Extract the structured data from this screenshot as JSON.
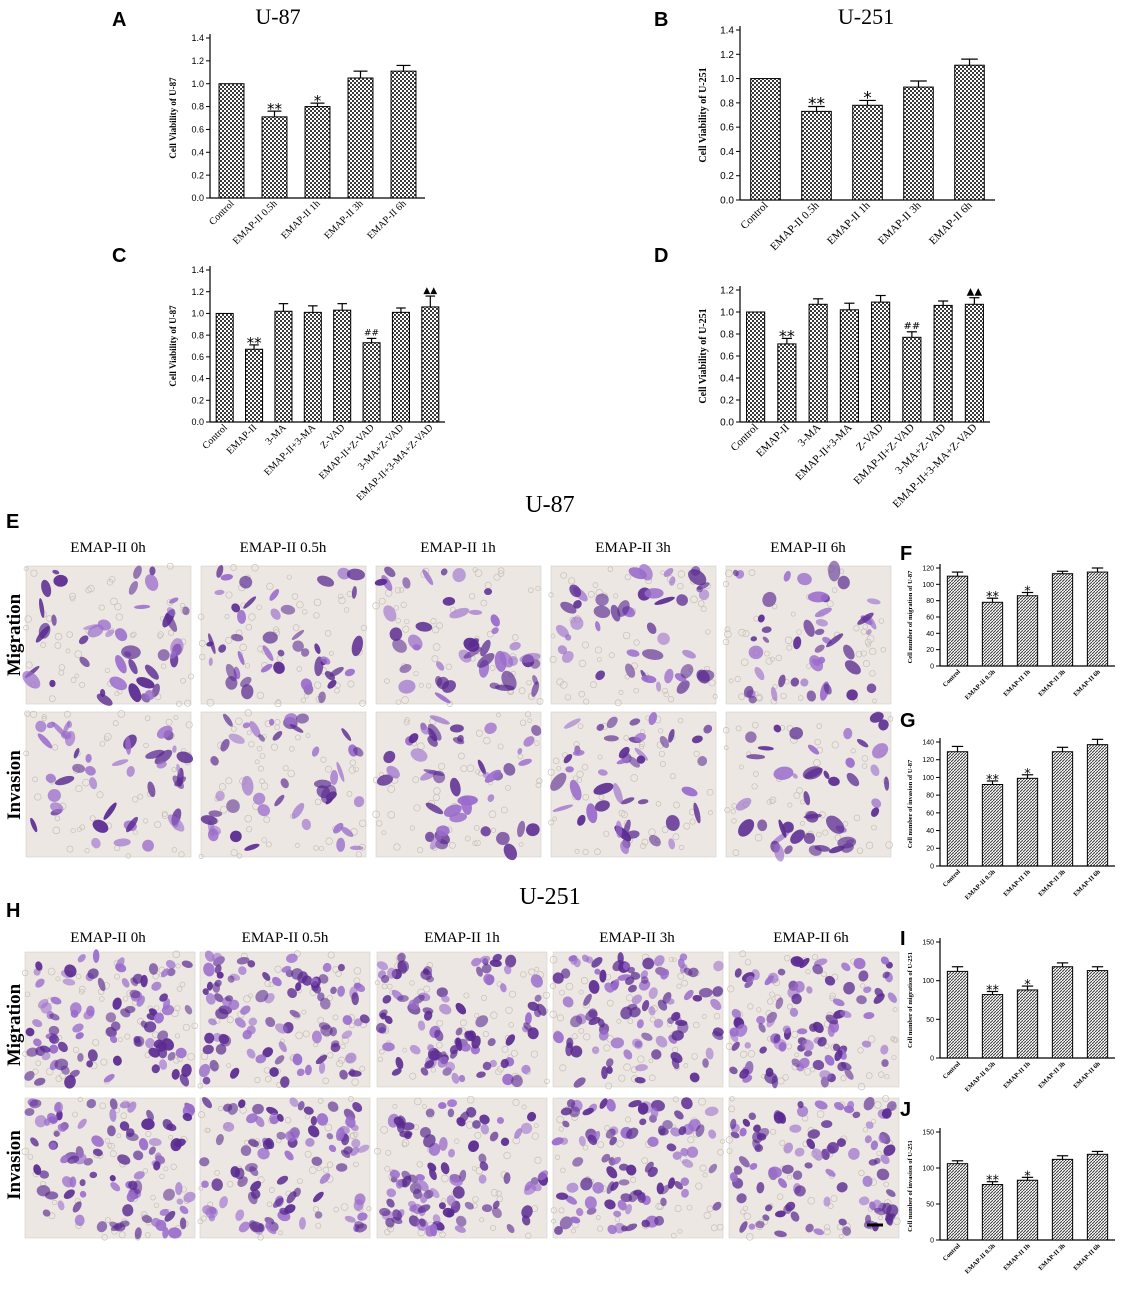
{
  "colors": {
    "bar_fill": "#3a3a3a",
    "micrograph_bg": "#ece7e2",
    "stain": "#5a2a91",
    "stain_light": "#9a6ccc"
  },
  "panels": {
    "A": "A",
    "B": "B",
    "C": "C",
    "D": "D",
    "E": "E",
    "F": "F",
    "G": "G",
    "H": "H",
    "I": "I",
    "J": "J"
  },
  "section_titles": {
    "u87": "U-87",
    "u251": "U-251"
  },
  "micrographs": {
    "u87_columns": [
      "EMAP-II 0h",
      "EMAP-II 0.5h",
      "EMAP-II 1h",
      "EMAP-II 3h",
      "EMAP-II 6h"
    ],
    "u251_columns": [
      "EMAP-II 0h",
      "EMAP-II 0.5h",
      "EMAP-II 1h",
      "EMAP-II 3h",
      "EMAP-II 6h"
    ],
    "rows": [
      "Migration",
      "Invasion"
    ]
  },
  "chart_data": [
    {
      "id": "A",
      "type": "bar",
      "title": "U-87",
      "ylabel": "Cell Viability of U-87",
      "xlabel": "",
      "ylim": [
        0,
        1.4
      ],
      "yticks": [
        0.0,
        0.2,
        0.4,
        0.6,
        0.8,
        1.0,
        1.2,
        1.4
      ],
      "categories": [
        "Control",
        "EMAP-II 0.5h",
        "EMAP-II 1h",
        "EMAP-II 3h",
        "EMAP-II 6h"
      ],
      "values": [
        1.0,
        0.71,
        0.8,
        1.05,
        1.11
      ],
      "errors": [
        0.0,
        0.05,
        0.03,
        0.06,
        0.05
      ],
      "annotations": [
        "",
        "**",
        "*",
        "",
        ""
      ]
    },
    {
      "id": "B",
      "type": "bar",
      "title": "U-251",
      "ylabel": "Cell Viability of U-251",
      "xlabel": "",
      "ylim": [
        0,
        1.4
      ],
      "yticks": [
        0.0,
        0.2,
        0.4,
        0.6,
        0.8,
        1.0,
        1.2,
        1.4
      ],
      "categories": [
        "Control",
        "EMAP-II 0.5h",
        "EMAP-II 1h",
        "EMAP-II 3h",
        "EMAP-II 6h"
      ],
      "values": [
        1.0,
        0.73,
        0.78,
        0.93,
        1.11
      ],
      "errors": [
        0.0,
        0.04,
        0.04,
        0.05,
        0.05
      ],
      "annotations": [
        "",
        "**",
        "*",
        "",
        ""
      ]
    },
    {
      "id": "C",
      "type": "bar",
      "title": "",
      "ylabel": "Cell Viability of U-87",
      "xlabel": "",
      "ylim": [
        0,
        1.4
      ],
      "yticks": [
        0.0,
        0.2,
        0.4,
        0.6,
        0.8,
        1.0,
        1.2,
        1.4
      ],
      "categories": [
        "Control",
        "EMAP-II",
        "3-MA",
        "EMAP-II+3-MA",
        "Z-VAD",
        "EMAP-II+Z-VAD",
        "3-MA+Z-VAD",
        "EMAP-II+3-MA+Z-VAD"
      ],
      "values": [
        1.0,
        0.67,
        1.02,
        1.01,
        1.03,
        0.73,
        1.01,
        1.06
      ],
      "errors": [
        0.0,
        0.04,
        0.07,
        0.06,
        0.06,
        0.04,
        0.04,
        0.1
      ],
      "annotations": [
        "",
        "**",
        "",
        "",
        "",
        "##",
        "",
        "▲▲"
      ]
    },
    {
      "id": "D",
      "type": "bar",
      "title": "",
      "ylabel": "Cell Viability of U-251",
      "xlabel": "",
      "ylim": [
        0,
        1.2
      ],
      "yticks": [
        0.0,
        0.2,
        0.4,
        0.6,
        0.8,
        1.0,
        1.2
      ],
      "categories": [
        "Control",
        "EMAP-II",
        "3-MA",
        "EMAP-II+3-MA",
        "Z-VAD",
        "EMAP-II+Z-VAD",
        "3-MA+Z-VAD",
        "EMAP-II+3-MA+Z-VAD"
      ],
      "values": [
        1.0,
        0.71,
        1.07,
        1.02,
        1.09,
        0.77,
        1.06,
        1.07
      ],
      "errors": [
        0.0,
        0.05,
        0.05,
        0.06,
        0.06,
        0.05,
        0.04,
        0.06
      ],
      "annotations": [
        "",
        "**",
        "",
        "",
        "",
        "##",
        "",
        "▲▲"
      ]
    },
    {
      "id": "F",
      "type": "bar",
      "title": "",
      "ylabel": "Cell number of migration of U-87",
      "xlabel": "",
      "ylim": [
        0,
        120
      ],
      "yticks": [
        0,
        20,
        40,
        60,
        80,
        100,
        120
      ],
      "categories": [
        "Control",
        "EMAP-II 0.5h",
        "EMAP-II 1h",
        "EMAP-II 3h",
        "EMAP-II 6h"
      ],
      "values": [
        110,
        78,
        86,
        113,
        115
      ],
      "errors": [
        5,
        5,
        4,
        3,
        5
      ],
      "annotations": [
        "",
        "**",
        "*",
        "",
        ""
      ]
    },
    {
      "id": "G",
      "type": "bar",
      "title": "",
      "ylabel": "Cell number of invasion of U-87",
      "xlabel": "",
      "ylim": [
        0,
        140
      ],
      "yticks": [
        0,
        20,
        40,
        60,
        80,
        100,
        120,
        140
      ],
      "categories": [
        "Control",
        "EMAP-II 0.5h",
        "EMAP-II 1h",
        "EMAP-II 3h",
        "EMAP-II 6h"
      ],
      "values": [
        129,
        92,
        99,
        129,
        137
      ],
      "errors": [
        6,
        4,
        4,
        5,
        6
      ],
      "annotations": [
        "",
        "**",
        "*",
        "",
        ""
      ]
    },
    {
      "id": "I",
      "type": "bar",
      "title": "",
      "ylabel": "Cell number of migration of U-251",
      "xlabel": "",
      "ylim": [
        0,
        150
      ],
      "yticks": [
        0,
        50,
        100,
        150
      ],
      "categories": [
        "Control",
        "EMAP-II 0.5h",
        "EMAP-II 1h",
        "EMAP-II 3h",
        "EMAP-II 6h"
      ],
      "values": [
        112,
        82,
        88,
        118,
        113
      ],
      "errors": [
        6,
        4,
        5,
        5,
        5
      ],
      "annotations": [
        "",
        "**",
        "*",
        "",
        ""
      ]
    },
    {
      "id": "J",
      "type": "bar",
      "title": "",
      "ylabel": "Cell number of invasion of U-251",
      "xlabel": "",
      "ylim": [
        0,
        150
      ],
      "yticks": [
        0,
        50,
        100,
        150
      ],
      "categories": [
        "Control",
        "EMAP-II 0.5h",
        "EMAP-II 1h",
        "EMAP-II 3h",
        "EMAP-II 6h"
      ],
      "values": [
        106,
        77,
        83,
        112,
        119
      ],
      "errors": [
        4,
        4,
        4,
        5,
        4
      ],
      "annotations": [
        "",
        "**",
        "*",
        "",
        ""
      ]
    }
  ]
}
